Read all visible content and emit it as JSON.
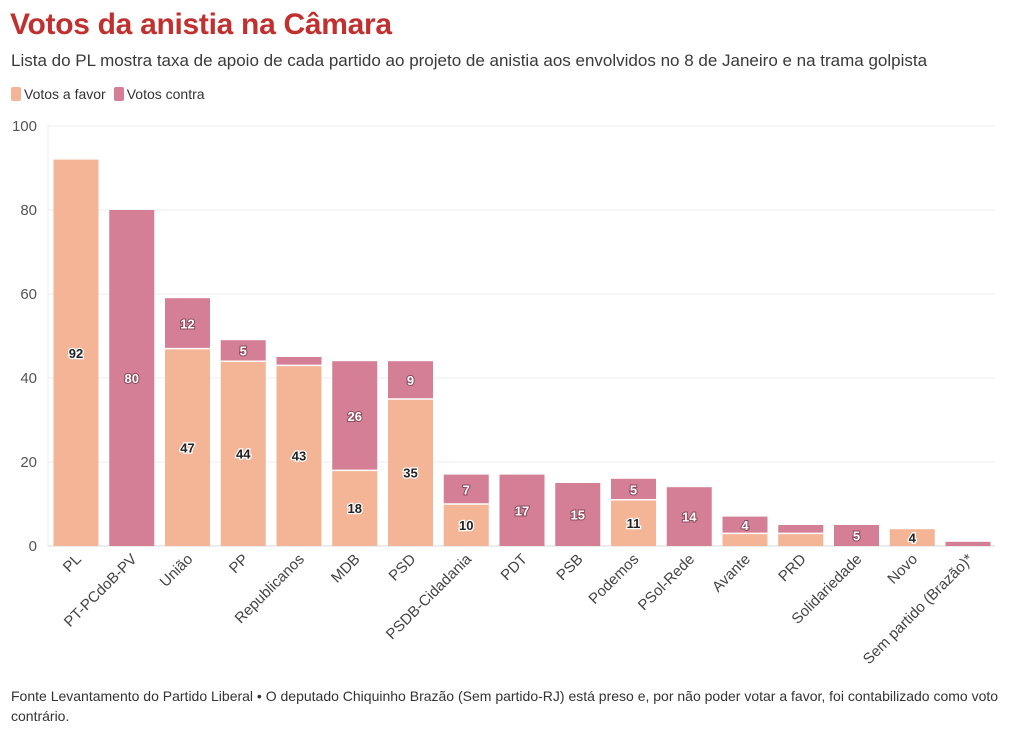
{
  "colors": {
    "favor": "#f4b496",
    "contra": "#d57f96",
    "title": "#c0302e"
  },
  "header": {
    "title": "Votos da anistia na Câmara",
    "subtitle": "Lista do PL mostra taxa de apoio de cada partido ao projeto de anistia aos envolvidos no 8 de Janeiro e na trama golpista"
  },
  "legend": {
    "favor": "Votos a favor",
    "contra": "Votos contra"
  },
  "footer": {
    "text": "Fonte Levantamento do Partido Liberal • O deputado Chiquinho Brazão (Sem partido-RJ) está preso e, por não poder votar a favor, foi contabilizado como voto contrário."
  },
  "chart_data": {
    "type": "bar",
    "stacked": true,
    "categories": [
      "PL",
      "PT-PCdoB-PV",
      "União",
      "PP",
      "Republicanos",
      "MDB",
      "PSD",
      "PSDB-Cidadania",
      "PDT",
      "PSB",
      "Podemos",
      "PSol-Rede",
      "Avante",
      "PRD",
      "Solidariedade",
      "Novo",
      "Sem partido (Brazão)*"
    ],
    "series": [
      {
        "name": "Votos a favor",
        "values": [
          92,
          0,
          47,
          44,
          43,
          18,
          35,
          10,
          0,
          0,
          11,
          0,
          3,
          3,
          0,
          4,
          0
        ]
      },
      {
        "name": "Votos contra",
        "values": [
          0,
          80,
          12,
          5,
          2,
          26,
          9,
          7,
          17,
          15,
          5,
          14,
          4,
          2,
          5,
          0,
          1
        ]
      }
    ],
    "data_labels": {
      "favor": [
        "92",
        "",
        "47",
        "44",
        "43",
        "18",
        "35",
        "10",
        "",
        "",
        "11",
        "",
        "",
        "",
        "",
        "4",
        ""
      ],
      "contra": [
        "",
        "80",
        "12",
        "5",
        "",
        "26",
        "9",
        "7",
        "17",
        "15",
        "5",
        "14",
        "4",
        "",
        "5",
        "",
        ""
      ]
    },
    "y_ticks": [
      "0",
      "20",
      "40",
      "60",
      "80",
      "100"
    ],
    "ylim": [
      0,
      100
    ],
    "grid": true,
    "legend_position": "top-left"
  }
}
